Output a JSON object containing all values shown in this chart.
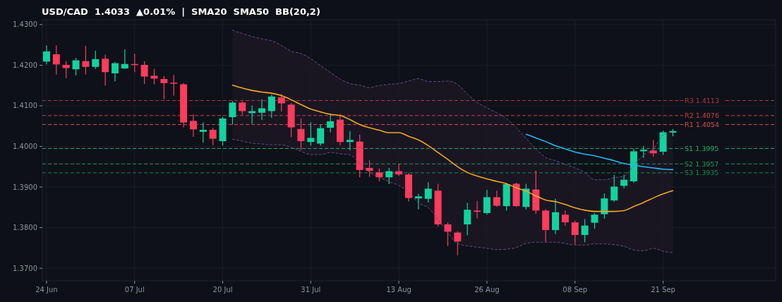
{
  "chart_data": {
    "type": "candlestick",
    "title": "USD/CAD  1.4033  ▲0.01%  |  SMA20  SMA50  BB(20,2)",
    "categories": [
      "24 Jun",
      null,
      null,
      null,
      null,
      null,
      null,
      null,
      null,
      "07 Jul",
      null,
      null,
      null,
      null,
      null,
      null,
      null,
      null,
      "20 Jul",
      null,
      null,
      null,
      null,
      null,
      null,
      null,
      null,
      "31 Jul",
      null,
      null,
      null,
      null,
      null,
      null,
      null,
      null,
      "13 Aug",
      null,
      null,
      null,
      null,
      null,
      null,
      null,
      null,
      "26 Aug",
      null,
      null,
      null,
      null,
      null,
      null,
      null,
      null,
      "08 Sep",
      null,
      null,
      null,
      null,
      null,
      null,
      null,
      null,
      "21 Sep",
      null
    ],
    "ohlc": [
      [
        1.4209,
        1.4249,
        1.4202,
        1.4234
      ],
      [
        1.4227,
        1.4249,
        1.4177,
        1.4202
      ],
      [
        1.4201,
        1.421,
        1.4168,
        1.4193
      ],
      [
        1.419,
        1.4218,
        1.4175,
        1.4212
      ],
      [
        1.421,
        1.4248,
        1.4177,
        1.4196
      ],
      [
        1.4196,
        1.4236,
        1.4191,
        1.4215
      ],
      [
        1.4216,
        1.4226,
        1.415,
        1.4183
      ],
      [
        1.418,
        1.4208,
        1.416,
        1.4205
      ],
      [
        1.4192,
        1.4239,
        1.4191,
        1.4203
      ],
      [
        1.4203,
        1.4228,
        1.4183,
        1.4201
      ],
      [
        1.4201,
        1.421,
        1.4154,
        1.4172
      ],
      [
        1.4174,
        1.4191,
        1.4153,
        1.4167
      ],
      [
        1.4166,
        1.4173,
        1.4116,
        1.4156
      ],
      [
        1.4157,
        1.4176,
        1.4125,
        1.4155
      ],
      [
        1.4153,
        1.4156,
        1.4047,
        1.4059
      ],
      [
        1.4063,
        1.4079,
        1.4024,
        1.4042
      ],
      [
        1.4036,
        1.4059,
        1.4009,
        1.4041
      ],
      [
        1.4041,
        1.4046,
        1.4003,
        1.4019
      ],
      [
        1.4013,
        1.4073,
        1.4002,
        1.4069
      ],
      [
        1.4072,
        1.4112,
        1.4054,
        1.4108
      ],
      [
        1.4108,
        1.4111,
        1.4078,
        1.4087
      ],
      [
        1.4082,
        1.4101,
        1.4056,
        1.4087
      ],
      [
        1.4083,
        1.4116,
        1.4065,
        1.4094
      ],
      [
        1.4087,
        1.4128,
        1.407,
        1.4123
      ],
      [
        1.4121,
        1.4129,
        1.4086,
        1.4106
      ],
      [
        1.4103,
        1.4107,
        1.4023,
        1.4047
      ],
      [
        1.4043,
        1.4069,
        1.3991,
        1.4013
      ],
      [
        1.4011,
        1.4059,
        1.4002,
        1.4021
      ],
      [
        1.4007,
        1.4054,
        1.4002,
        1.4045
      ],
      [
        1.4046,
        1.408,
        1.4035,
        1.4062
      ],
      [
        1.4066,
        1.408,
        1.4003,
        1.4011
      ],
      [
        1.4011,
        1.4038,
        1.399,
        1.4016
      ],
      [
        1.4012,
        1.4029,
        1.3924,
        1.3942
      ],
      [
        1.3947,
        1.3966,
        1.3925,
        1.394
      ],
      [
        1.3936,
        1.3946,
        1.3914,
        1.3924
      ],
      [
        1.3924,
        1.3947,
        1.3907,
        1.3939
      ],
      [
        1.3939,
        1.3957,
        1.3927,
        1.3931
      ],
      [
        1.3931,
        1.3935,
        1.3864,
        1.3873
      ],
      [
        1.3872,
        1.3883,
        1.3845,
        1.3877
      ],
      [
        1.3871,
        1.3912,
        1.3862,
        1.3896
      ],
      [
        1.3891,
        1.3908,
        1.3803,
        1.3808
      ],
      [
        1.3808,
        1.3813,
        1.3754,
        1.379
      ],
      [
        1.3788,
        1.3791,
        1.3732,
        1.3766
      ],
      [
        1.3808,
        1.3861,
        1.3781,
        1.3844
      ],
      [
        1.3842,
        1.3866,
        1.3823,
        1.3839
      ],
      [
        1.3836,
        1.3893,
        1.3832,
        1.3875
      ],
      [
        1.3875,
        1.3891,
        1.3851,
        1.3854
      ],
      [
        1.3853,
        1.391,
        1.3842,
        1.3907
      ],
      [
        1.3908,
        1.3911,
        1.3851,
        1.3853
      ],
      [
        1.3851,
        1.3908,
        1.3845,
        1.3896
      ],
      [
        1.3894,
        1.394,
        1.3834,
        1.3842
      ],
      [
        1.3842,
        1.3846,
        1.3765,
        1.3794
      ],
      [
        1.3794,
        1.3871,
        1.3784,
        1.3838
      ],
      [
        1.3832,
        1.3842,
        1.3804,
        1.3813
      ],
      [
        1.3813,
        1.3817,
        1.3758,
        1.3782
      ],
      [
        1.3782,
        1.3821,
        1.3764,
        1.3805
      ],
      [
        1.3812,
        1.3836,
        1.3797,
        1.3832
      ],
      [
        1.3833,
        1.3884,
        1.3822,
        1.3872
      ],
      [
        1.3867,
        1.393,
        1.3864,
        1.3901
      ],
      [
        1.3903,
        1.393,
        1.3897,
        1.3918
      ],
      [
        1.3914,
        1.3995,
        1.391,
        1.3988
      ],
      [
        1.3988,
        1.4001,
        1.3972,
        1.3992
      ],
      [
        1.399,
        1.4016,
        1.3975,
        1.3983
      ],
      [
        1.3987,
        1.4039,
        1.3979,
        1.4035
      ],
      [
        1.4034,
        1.4043,
        1.4025,
        1.4038
      ]
    ],
    "series": [
      {
        "type": "line",
        "color": "#f5a623",
        "values": [
          null,
          null,
          null,
          null,
          null,
          null,
          null,
          null,
          null,
          null,
          null,
          null,
          null,
          null,
          null,
          null,
          null,
          null,
          null,
          1.4151,
          1.4144,
          1.4138,
          1.4134,
          1.4131,
          1.4125,
          1.4115,
          1.4103,
          1.4092,
          1.4085,
          1.4079,
          1.4076,
          1.4066,
          1.4054,
          1.4046,
          1.404,
          1.4034,
          1.4034,
          1.4025,
          1.4016,
          1.4002,
          1.3985,
          1.3968,
          1.395,
          1.3936,
          1.3927,
          1.392,
          1.3914,
          1.3908,
          1.3898,
          1.389,
          1.3878,
          1.3868,
          1.3864,
          1.3857,
          1.3849,
          1.3843,
          1.384,
          1.384,
          1.384,
          1.3842,
          1.3852,
          1.3862,
          1.3873,
          1.3883,
          1.3891
        ],
        "upper": [
          null,
          null,
          null,
          null,
          null,
          null,
          null,
          null,
          null,
          null,
          null,
          null,
          null,
          null,
          null,
          null,
          null,
          null,
          null,
          1.4286,
          1.4278,
          1.4271,
          1.4265,
          1.426,
          1.4249,
          1.4234,
          1.4229,
          1.4216,
          1.4199,
          1.4182,
          1.4166,
          1.4155,
          1.4151,
          1.4145,
          1.415,
          1.4153,
          1.4155,
          1.4161,
          1.4167,
          1.416,
          1.416,
          1.4161,
          1.4153,
          1.4129,
          1.4109,
          1.4095,
          1.4083,
          1.4069,
          1.4046,
          1.402,
          1.3994,
          1.3973,
          1.3965,
          1.3956,
          1.3947,
          1.3936,
          1.3918,
          1.3918,
          1.3923,
          1.3927,
          1.3953,
          1.3979,
          1.3994,
          1.4028,
          1.4036
        ],
        "lower": [
          null,
          null,
          null,
          null,
          null,
          null,
          null,
          null,
          null,
          null,
          null,
          null,
          null,
          null,
          null,
          null,
          null,
          null,
          null,
          1.4018,
          1.4013,
          1.4008,
          1.4006,
          1.4004,
          1.4004,
          1.3998,
          1.3988,
          1.398,
          1.398,
          1.3985,
          1.3982,
          1.3979,
          1.3959,
          1.3936,
          1.3924,
          1.3913,
          1.3904,
          1.3887,
          1.3861,
          1.3849,
          1.382,
          1.3788,
          1.376,
          1.3755,
          1.3752,
          1.3749,
          1.3746,
          1.3747,
          1.3751,
          1.3761,
          1.3764,
          1.3764,
          1.3764,
          1.3761,
          1.3757,
          1.3757,
          1.376,
          1.376,
          1.3758,
          1.3754,
          1.3745,
          1.3743,
          1.3749,
          1.3742,
          1.3738
        ]
      },
      {
        "type": "line",
        "color": "#6e4a8c",
        "line_style": "dashed",
        "values": [
          null,
          null,
          null,
          null,
          null,
          null,
          null,
          null,
          null,
          null,
          null,
          null,
          null,
          null,
          null,
          null,
          null,
          null,
          null,
          1.4286,
          1.4278,
          1.4271,
          1.4265,
          1.426,
          1.4249,
          1.4234,
          1.4229,
          1.4216,
          1.4199,
          1.4182,
          1.4166,
          1.4155,
          1.4151,
          1.4145,
          1.415,
          1.4153,
          1.4155,
          1.4161,
          1.4167,
          1.416,
          1.416,
          1.4161,
          1.4153,
          1.4129,
          1.4109,
          1.4095,
          1.4083,
          1.4069,
          1.4046,
          1.402,
          1.3994,
          1.3973,
          1.3965,
          1.3956,
          1.3947,
          1.3936,
          1.3918,
          1.3918,
          1.3923,
          1.3927,
          1.3953,
          1.3979,
          1.3994,
          1.4028,
          1.4036
        ]
      },
      {
        "type": "line",
        "color": "#6e4a8c",
        "line_style": "dashed",
        "values": [
          null,
          null,
          null,
          null,
          null,
          null,
          null,
          null,
          null,
          null,
          null,
          null,
          null,
          null,
          null,
          null,
          null,
          null,
          null,
          1.4018,
          1.4013,
          1.4008,
          1.4006,
          1.4004,
          1.4004,
          1.3998,
          1.3988,
          1.398,
          1.398,
          1.3985,
          1.3982,
          1.3979,
          1.3959,
          1.3936,
          1.3924,
          1.3913,
          1.3904,
          1.3887,
          1.3861,
          1.3849,
          1.382,
          1.3788,
          1.376,
          1.3755,
          1.3752,
          1.3749,
          1.3746,
          1.3747,
          1.3751,
          1.3761,
          1.3764,
          1.3764,
          1.3764,
          1.3761,
          1.3757,
          1.3757,
          1.376,
          1.376,
          1.3758,
          1.3754,
          1.3745,
          1.3743,
          1.3749,
          1.3742,
          1.3738
        ]
      },
      {
        "type": "line",
        "color": "#29b6f6",
        "values": [
          null,
          null,
          null,
          null,
          null,
          null,
          null,
          null,
          null,
          null,
          null,
          null,
          null,
          null,
          null,
          null,
          null,
          null,
          null,
          null,
          null,
          null,
          null,
          null,
          null,
          null,
          null,
          null,
          null,
          null,
          null,
          null,
          null,
          null,
          null,
          null,
          null,
          null,
          null,
          null,
          null,
          null,
          null,
          null,
          null,
          null,
          null,
          null,
          null,
          1.403,
          1.4021,
          1.4012,
          1.4002,
          1.3994,
          1.3986,
          1.3981,
          1.3977,
          1.3971,
          1.3965,
          1.3958,
          1.3954,
          1.395,
          1.3947,
          1.3944,
          1.3943
        ]
      }
    ],
    "ylim": [
      1.3669,
      1.4312
    ],
    "yticks": [
      {
        "value": 1.37,
        "label": "1.3700"
      },
      {
        "value": 1.38,
        "label": "1.3800"
      },
      {
        "value": 1.39,
        "label": "1.3900"
      },
      {
        "value": 1.4,
        "label": "1.4000"
      },
      {
        "value": 1.41,
        "label": "1.4100"
      },
      {
        "value": 1.42,
        "label": "1.4200"
      },
      {
        "value": 1.43,
        "label": "1.4300"
      }
    ],
    "grid": true,
    "ref_lines": [
      {
        "axis": "y",
        "value": 1.4113,
        "label": "R3 1.4113",
        "color": "#b8323c",
        "line_style": "dashed"
      },
      {
        "axis": "y",
        "value": 1.4076,
        "label": "R2 1.4076",
        "color": "#c8404a",
        "line_style": "dashed"
      },
      {
        "axis": "y",
        "value": 1.4054,
        "label": "R1 1.4054",
        "color": "#d84a52",
        "line_style": "dashed"
      },
      {
        "axis": "y",
        "value": 1.3995,
        "label": "S1 1.3995",
        "color": "#22b36a",
        "line_style": "dashed"
      },
      {
        "axis": "y",
        "value": 1.3957,
        "label": "S2 1.3957",
        "color": "#1f9a5c",
        "line_style": "dashed"
      },
      {
        "axis": "y",
        "value": 1.3935,
        "label": "S3 1.3935",
        "color": "#1b8750",
        "line_style": "dashed"
      }
    ]
  }
}
